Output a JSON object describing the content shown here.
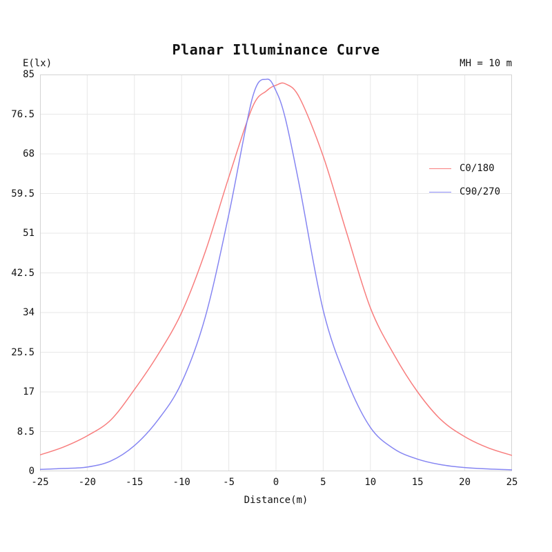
{
  "page": {
    "background": "#ffffff",
    "text_color": "#111111"
  },
  "header": {
    "title": "Planar Illuminance Curve",
    "annotation": "MH = 10 m"
  },
  "colors": {
    "series_red": "#f87d7d",
    "series_blue": "#8585f2",
    "grid": "#e7e7e7",
    "plot_border": "#d3d3d3"
  },
  "chart_data": {
    "type": "line",
    "title": "Planar Illuminance Curve",
    "annotation": "MH = 10 m",
    "xlabel": "Distance(m)",
    "ylabel": "E(lx)",
    "xlim": [
      -25,
      25
    ],
    "ylim": [
      0,
      85
    ],
    "x_ticks": [
      -25,
      -20,
      -15,
      -10,
      -5,
      0,
      5,
      10,
      15,
      20,
      25
    ],
    "y_ticks": [
      0,
      8.5,
      17,
      25.5,
      34,
      42.5,
      51,
      59.5,
      68,
      76.5,
      85
    ],
    "grid": true,
    "legend_position": "top-right",
    "series": [
      {
        "name": "C0/180",
        "color": "#f87d7d",
        "x": [
          -25,
          -22.5,
          -20,
          -17.5,
          -15,
          -12.5,
          -10,
          -7.5,
          -5,
          -2.5,
          -1,
          0,
          1,
          2.5,
          5,
          7.5,
          10,
          12.5,
          15,
          17.5,
          20,
          22.5,
          25
        ],
        "y": [
          3.5,
          5.2,
          7.6,
          11,
          17.5,
          25,
          34,
          47,
          63,
          78,
          81.5,
          82.7,
          83,
          80,
          67.5,
          51,
          35,
          25,
          17,
          11,
          7.4,
          5,
          3.4
        ]
      },
      {
        "name": "C90/270",
        "color": "#8585f2",
        "x": [
          -25,
          -22.5,
          -20,
          -17.5,
          -15,
          -12.5,
          -10,
          -7.5,
          -5,
          -2.5,
          -1,
          0,
          1,
          2.5,
          5,
          7.5,
          10,
          12.5,
          15,
          17.5,
          20,
          22.5,
          25
        ],
        "y": [
          0.4,
          0.6,
          0.9,
          2.2,
          5.5,
          11,
          19,
          33,
          55,
          80,
          84,
          81.5,
          75.5,
          61,
          34.5,
          19.5,
          9.4,
          4.8,
          2.6,
          1.4,
          0.8,
          0.5,
          0.3
        ]
      }
    ]
  }
}
